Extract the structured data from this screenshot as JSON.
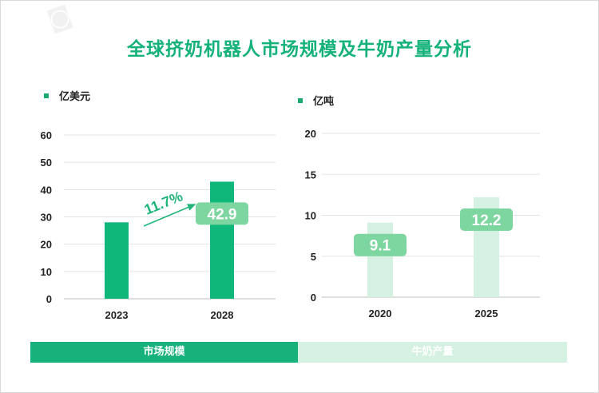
{
  "title": "全球挤奶机器人市场规模及牛奶产量分析",
  "colors": {
    "accent": "#17b27c",
    "light": "#d4f1e1",
    "label_bg": "#7dd6a0",
    "annotation": "#1fb57a"
  },
  "chart_data": [
    {
      "type": "bar",
      "unit_label": "亿美元",
      "categories": [
        "2023",
        "2028"
      ],
      "values": [
        28,
        42.9
      ],
      "data_labels": [
        "",
        "42.9"
      ],
      "ylim": [
        0,
        60
      ],
      "yticks": [
        "0",
        "10",
        "20",
        "30",
        "40",
        "50",
        "60"
      ],
      "annotation": "11.7%",
      "bar_color": "#10b77b",
      "grid": true
    },
    {
      "type": "bar",
      "unit_label": "亿吨",
      "categories": [
        "2020",
        "2025"
      ],
      "values": [
        9.1,
        12.2
      ],
      "data_labels": [
        "9.1",
        "12.2"
      ],
      "ylim": [
        0,
        20
      ],
      "yticks": [
        "0",
        "5",
        "10",
        "15",
        "20"
      ],
      "bar_color": "#d4f1e1",
      "grid": true
    }
  ],
  "tabs": [
    {
      "label": "市场规模"
    },
    {
      "label": "牛奶产量"
    }
  ]
}
